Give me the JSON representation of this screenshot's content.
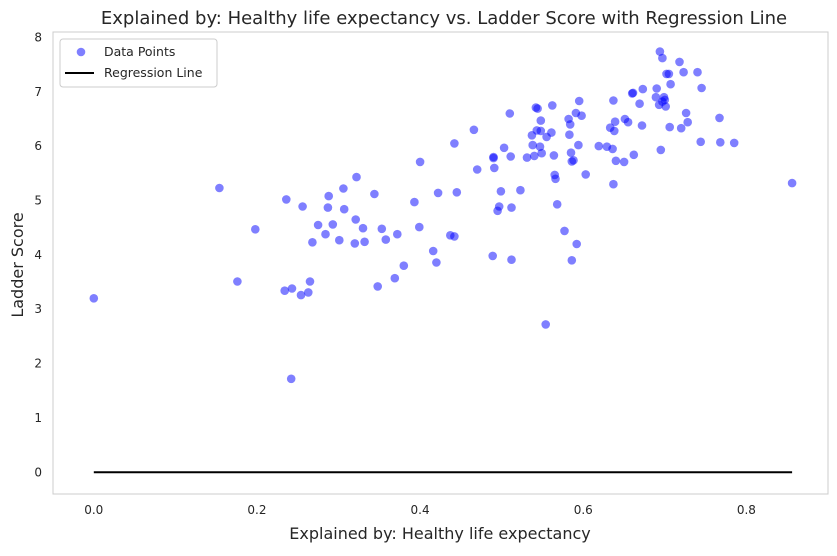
{
  "chart_data": {
    "type": "scatter",
    "title": "Explained by: Healthy life expectancy vs. Ladder Score with Regression Line",
    "xlabel": "Explained by: Healthy life expectancy",
    "ylabel": "Ladder Score",
    "xlim": [
      -0.05,
      0.9
    ],
    "ylim": [
      -0.4,
      8.1
    ],
    "x_ticks": [
      0.0,
      0.2,
      0.4,
      0.6,
      0.8
    ],
    "x_tick_labels": [
      "0.0",
      "0.2",
      "0.4",
      "0.6",
      "0.8"
    ],
    "y_ticks": [
      0,
      1,
      2,
      3,
      4,
      5,
      6,
      7,
      8
    ],
    "y_tick_labels": [
      "0",
      "1",
      "2",
      "3",
      "4",
      "5",
      "6",
      "7",
      "8"
    ],
    "grid": false,
    "legend_position": "top-left",
    "series": [
      {
        "name": "Data Points",
        "kind": "scatter",
        "color": "#0000ff",
        "alpha": 0.5,
        "points": [
          [
            0.0,
            3.2
          ],
          [
            0.154,
            5.23
          ],
          [
            0.176,
            3.51
          ],
          [
            0.198,
            4.47
          ],
          [
            0.234,
            3.34
          ],
          [
            0.236,
            5.02
          ],
          [
            0.242,
            1.72
          ],
          [
            0.243,
            3.38
          ],
          [
            0.254,
            3.26
          ],
          [
            0.256,
            4.89
          ],
          [
            0.263,
            3.31
          ],
          [
            0.265,
            3.51
          ],
          [
            0.268,
            4.23
          ],
          [
            0.275,
            4.55
          ],
          [
            0.284,
            4.38
          ],
          [
            0.287,
            4.87
          ],
          [
            0.288,
            5.08
          ],
          [
            0.293,
            4.56
          ],
          [
            0.301,
            4.27
          ],
          [
            0.306,
            5.22
          ],
          [
            0.307,
            4.84
          ],
          [
            0.32,
            4.21
          ],
          [
            0.321,
            4.65
          ],
          [
            0.322,
            5.43
          ],
          [
            0.33,
            4.49
          ],
          [
            0.332,
            4.24
          ],
          [
            0.344,
            5.12
          ],
          [
            0.348,
            3.42
          ],
          [
            0.353,
            4.48
          ],
          [
            0.358,
            4.28
          ],
          [
            0.369,
            3.57
          ],
          [
            0.372,
            4.38
          ],
          [
            0.38,
            3.8
          ],
          [
            0.393,
            4.97
          ],
          [
            0.399,
            4.51
          ],
          [
            0.4,
            5.71
          ],
          [
            0.416,
            4.07
          ],
          [
            0.42,
            3.86
          ],
          [
            0.422,
            5.14
          ],
          [
            0.437,
            4.36
          ],
          [
            0.442,
            4.34
          ],
          [
            0.442,
            6.05
          ],
          [
            0.445,
            5.15
          ],
          [
            0.466,
            6.3
          ],
          [
            0.47,
            5.57
          ],
          [
            0.489,
            3.98
          ],
          [
            0.49,
            5.8
          ],
          [
            0.49,
            5.78
          ],
          [
            0.491,
            5.6
          ],
          [
            0.495,
            4.81
          ],
          [
            0.497,
            4.89
          ],
          [
            0.499,
            5.17
          ],
          [
            0.503,
            5.97
          ],
          [
            0.51,
            6.6
          ],
          [
            0.511,
            5.81
          ],
          [
            0.512,
            4.87
          ],
          [
            0.512,
            3.91
          ],
          [
            0.523,
            5.19
          ],
          [
            0.531,
            5.79
          ],
          [
            0.537,
            6.2
          ],
          [
            0.538,
            6.02
          ],
          [
            0.54,
            5.82
          ],
          [
            0.542,
            6.71
          ],
          [
            0.543,
            6.29
          ],
          [
            0.544,
            6.69
          ],
          [
            0.547,
            5.99
          ],
          [
            0.548,
            6.28
          ],
          [
            0.548,
            6.47
          ],
          [
            0.549,
            5.87
          ],
          [
            0.554,
            2.72
          ],
          [
            0.555,
            6.17
          ],
          [
            0.561,
            6.25
          ],
          [
            0.562,
            6.75
          ],
          [
            0.564,
            5.83
          ],
          [
            0.565,
            5.47
          ],
          [
            0.566,
            5.4
          ],
          [
            0.568,
            4.93
          ],
          [
            0.577,
            4.44
          ],
          [
            0.582,
            6.5
          ],
          [
            0.583,
            6.21
          ],
          [
            0.584,
            6.4
          ],
          [
            0.585,
            5.88
          ],
          [
            0.586,
            3.9
          ],
          [
            0.586,
            5.72
          ],
          [
            0.588,
            5.74
          ],
          [
            0.591,
            6.61
          ],
          [
            0.592,
            4.2
          ],
          [
            0.594,
            6.02
          ],
          [
            0.595,
            6.83
          ],
          [
            0.598,
            6.56
          ],
          [
            0.603,
            5.48
          ],
          [
            0.619,
            6.0
          ],
          [
            0.629,
            5.99
          ],
          [
            0.633,
            6.34
          ],
          [
            0.636,
            5.95
          ],
          [
            0.637,
            6.84
          ],
          [
            0.637,
            5.3
          ],
          [
            0.638,
            6.28
          ],
          [
            0.639,
            6.45
          ],
          [
            0.64,
            5.73
          ],
          [
            0.65,
            5.71
          ],
          [
            0.651,
            6.5
          ],
          [
            0.655,
            6.44
          ],
          [
            0.66,
            6.97
          ],
          [
            0.661,
            6.98
          ],
          [
            0.662,
            5.84
          ],
          [
            0.669,
            6.78
          ],
          [
            0.672,
            6.38
          ],
          [
            0.673,
            7.05
          ],
          [
            0.689,
            6.9
          ],
          [
            0.69,
            7.06
          ],
          [
            0.693,
            6.76
          ],
          [
            0.694,
            7.74
          ],
          [
            0.695,
            5.93
          ],
          [
            0.697,
            6.82
          ],
          [
            0.697,
            7.62
          ],
          [
            0.699,
            6.9
          ],
          [
            0.7,
            6.85
          ],
          [
            0.701,
            6.73
          ],
          [
            0.702,
            7.33
          ],
          [
            0.705,
            7.33
          ],
          [
            0.706,
            6.35
          ],
          [
            0.707,
            7.14
          ],
          [
            0.718,
            7.55
          ],
          [
            0.72,
            6.33
          ],
          [
            0.723,
            7.36
          ],
          [
            0.726,
            6.61
          ],
          [
            0.728,
            6.44
          ],
          [
            0.74,
            7.36
          ],
          [
            0.744,
            6.08
          ],
          [
            0.745,
            7.07
          ],
          [
            0.767,
            6.52
          ],
          [
            0.768,
            6.07
          ],
          [
            0.785,
            6.06
          ],
          [
            0.856,
            5.32
          ]
        ]
      },
      {
        "name": "Regression Line",
        "kind": "line",
        "color": "#000000",
        "points": [
          [
            0.0,
            0.0
          ],
          [
            0.856,
            0.0
          ]
        ]
      }
    ]
  }
}
